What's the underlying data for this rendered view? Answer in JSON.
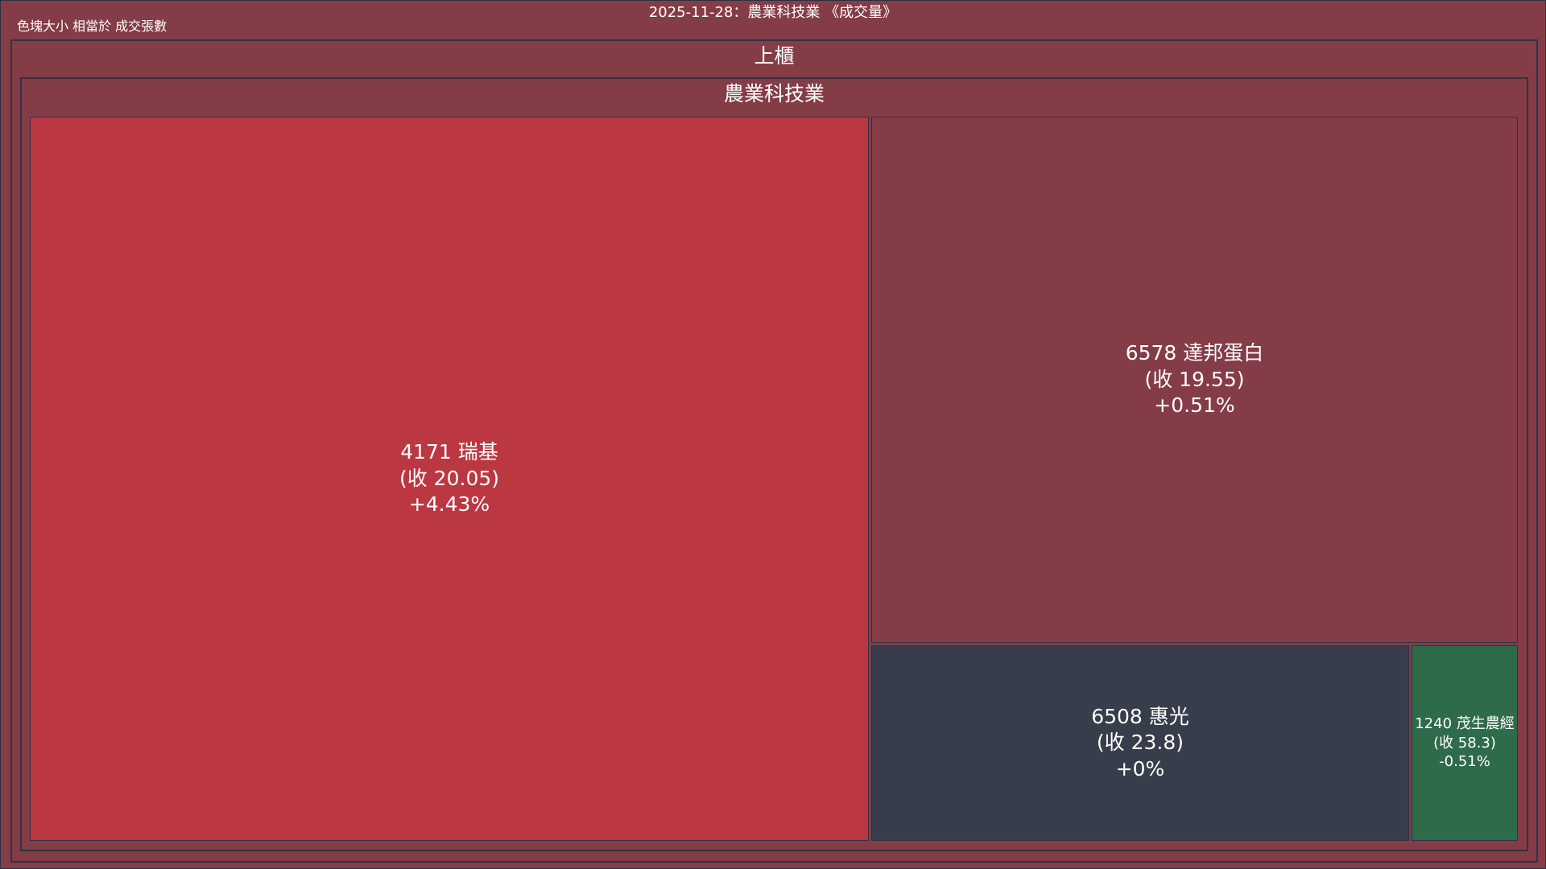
{
  "header": {
    "title": "2025-11-28：農業科技業 《成交量》",
    "size_note": "色塊大小 相當於 成交張數"
  },
  "groups": {
    "market": "上櫃",
    "industry": "農業科技業"
  },
  "colors": {
    "background": "#843c47",
    "border": "#2f3444",
    "up_strong": "#bb3741",
    "up_weak": "#843c47",
    "flat": "#383d4b",
    "down_weak": "#2e6b4a"
  },
  "chart_data": {
    "type": "treemap",
    "title": "2025-11-28：農業科技業 《成交量》",
    "size_metric": "成交張數",
    "hierarchy": [
      "上櫃",
      "農業科技業"
    ],
    "series": [
      {
        "id": "4171",
        "name": "瑞基",
        "line1": "4171 瑞基",
        "close": 20.05,
        "close_label": "(收 20.05)",
        "change_pct": 4.43,
        "change_label": "+4.43%",
        "color": "#bb3741",
        "share": 0.56
      },
      {
        "id": "6578",
        "name": "達邦蛋白",
        "line1": "6578 達邦蛋白",
        "close": 19.55,
        "close_label": "(收 19.55)",
        "change_pct": 0.51,
        "change_label": "+0.51%",
        "color": "#843c47",
        "share": 0.315
      },
      {
        "id": "6508",
        "name": "惠光",
        "line1": "6508 惠光",
        "close": 23.8,
        "close_label": "(收 23.8)",
        "change_pct": 0,
        "change_label": "+0%",
        "color": "#383d4b",
        "share": 0.095
      },
      {
        "id": "1240",
        "name": "茂生農經",
        "line1": "1240 茂生農經",
        "close": 58.3,
        "close_label": "(收 58.3)",
        "change_pct": -0.51,
        "change_label": "-0.51%",
        "color": "#2e6b4a",
        "share": 0.03
      }
    ]
  }
}
